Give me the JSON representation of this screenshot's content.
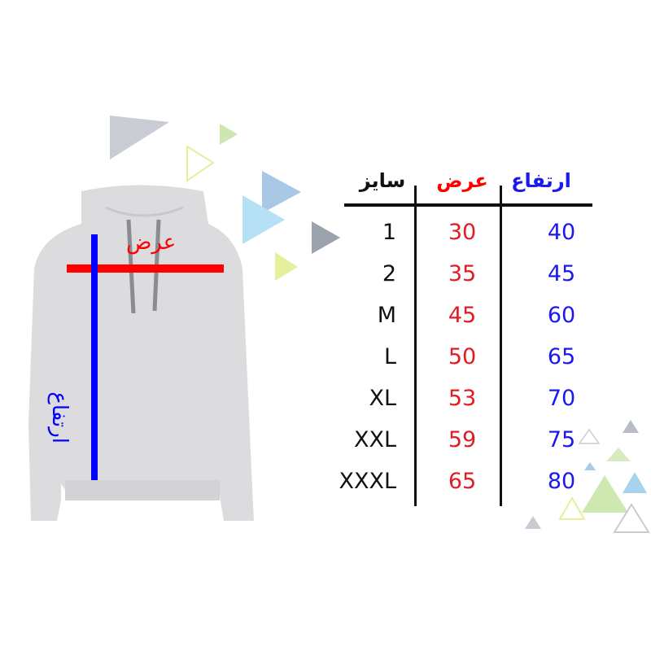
{
  "hoodie": {
    "width_label": "عرض",
    "height_label": "ارتفاع",
    "width_color": "#ff0000",
    "height_color": "#0000ff"
  },
  "table": {
    "headers": {
      "size": "سایز",
      "width": "عرض",
      "height": "ارتفاع"
    },
    "rows": [
      {
        "size": "1",
        "width": "30",
        "height": "40"
      },
      {
        "size": "2",
        "width": "35",
        "height": "45"
      },
      {
        "size": "M",
        "width": "45",
        "height": "60"
      },
      {
        "size": "L",
        "width": "50",
        "height": "65"
      },
      {
        "size": "XL",
        "width": "53",
        "height": "70"
      },
      {
        "size": "XXL",
        "width": "59",
        "height": "75"
      },
      {
        "size": "XXXL",
        "width": "65",
        "height": "80"
      }
    ]
  }
}
